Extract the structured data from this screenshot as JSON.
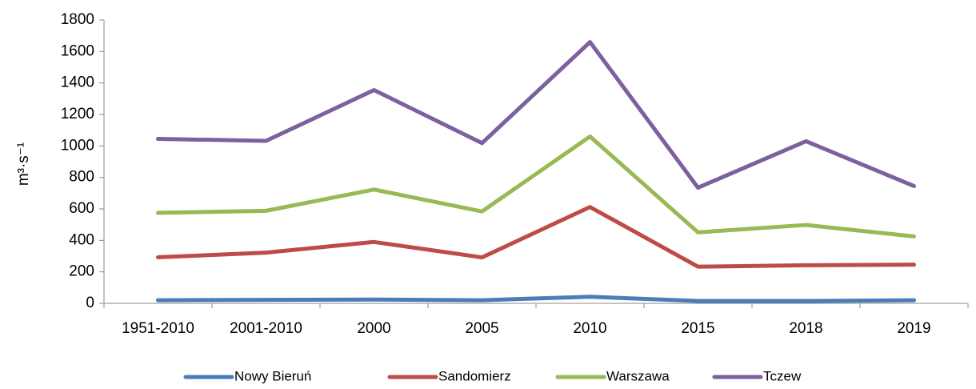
{
  "chart_data": {
    "type": "line",
    "y_label": "m³·s⁻¹",
    "categories": [
      "1951-2010",
      "2001-2010",
      "2000",
      "2005",
      "2010",
      "2015",
      "2018",
      "2019"
    ],
    "series": [
      {
        "name": "Nowy Bieruń",
        "color": "#4a7ebb",
        "values": [
          20,
          22,
          24,
          20,
          42,
          15,
          15,
          20
        ]
      },
      {
        "name": "Sandomierz",
        "color": "#be4b48",
        "values": [
          293,
          322,
          390,
          292,
          612,
          233,
          242,
          246
        ]
      },
      {
        "name": "Warszawa",
        "color": "#98b954",
        "values": [
          575,
          588,
          723,
          584,
          1060,
          451,
          498,
          425
        ]
      },
      {
        "name": "Tczew",
        "color": "#7d60a0",
        "values": [
          1045,
          1032,
          1355,
          1018,
          1660,
          735,
          1030,
          745
        ]
      }
    ],
    "ylim": [
      0,
      1800
    ],
    "yticks": [
      0,
      200,
      400,
      600,
      800,
      1000,
      1200,
      1400,
      1600,
      1800
    ],
    "grid": false,
    "legend": "bottom"
  }
}
